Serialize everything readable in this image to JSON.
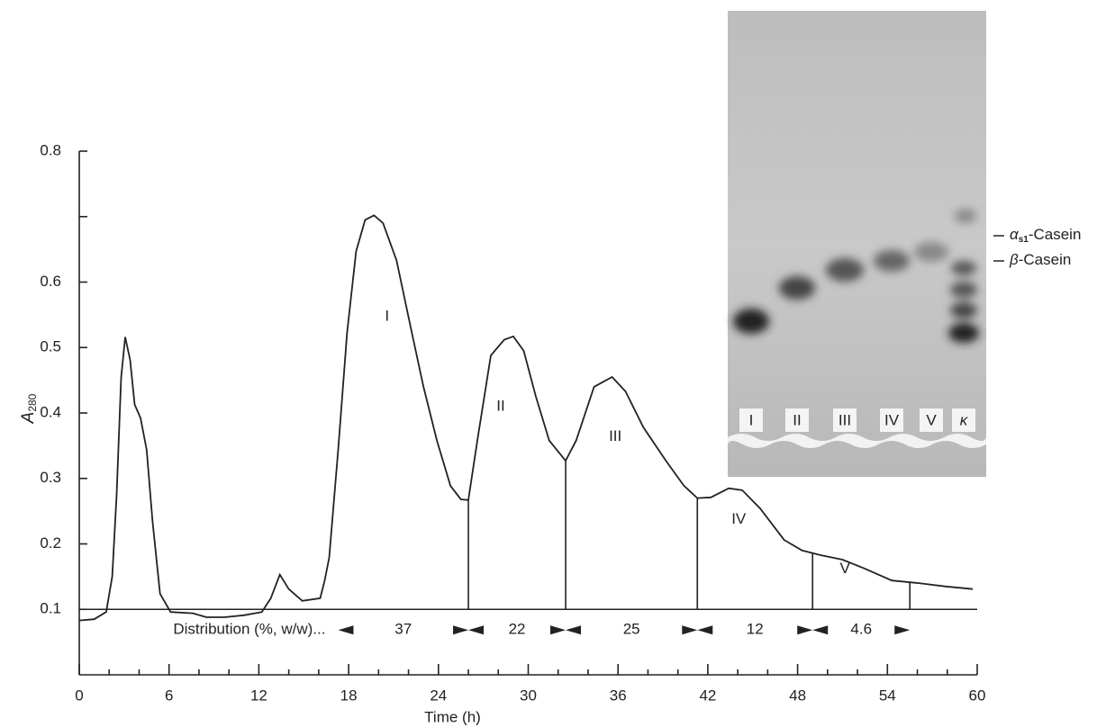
{
  "chart_data": {
    "type": "line",
    "x": [
      0,
      1.0,
      1.8,
      2.2,
      2.5,
      2.8,
      3.07,
      3.4,
      3.7,
      4.1,
      4.5,
      4.9,
      5.4,
      6.1,
      7.6,
      8.5,
      9.7,
      11.0,
      12.2,
      12.8,
      13.4,
      14.0,
      14.9,
      16.1,
      16.4,
      16.7,
      17.3,
      17.9,
      18.5,
      19.1,
      19.7,
      20.3,
      21.2,
      22.1,
      23.0,
      23.9,
      24.8,
      25.5,
      26.0,
      26.6,
      27.5,
      28.4,
      29.0,
      29.7,
      30.5,
      31.4,
      32.5,
      33.2,
      34.4,
      35.6,
      36.5,
      37.7,
      39.2,
      40.4,
      41.3,
      42.2,
      43.4,
      44.3,
      45.5,
      47.1,
      48.3,
      49.5,
      51.0,
      52.5,
      54.3,
      56.1,
      57.9,
      59.7
    ],
    "values": [
      0.083,
      0.085,
      0.096,
      0.15,
      0.275,
      0.454,
      0.516,
      0.481,
      0.413,
      0.392,
      0.344,
      0.234,
      0.124,
      0.096,
      0.094,
      0.088,
      0.088,
      0.091,
      0.096,
      0.117,
      0.153,
      0.131,
      0.113,
      0.117,
      0.144,
      0.179,
      0.344,
      0.523,
      0.647,
      0.695,
      0.702,
      0.69,
      0.633,
      0.536,
      0.44,
      0.358,
      0.289,
      0.268,
      0.267,
      0.358,
      0.488,
      0.512,
      0.517,
      0.495,
      0.426,
      0.358,
      0.327,
      0.358,
      0.44,
      0.455,
      0.433,
      0.378,
      0.327,
      0.289,
      0.27,
      0.271,
      0.285,
      0.282,
      0.254,
      0.206,
      0.19,
      0.183,
      0.176,
      0.162,
      0.144,
      0.14,
      0.135,
      0.131
    ],
    "color": "#222222",
    "xlim": [
      0,
      60
    ],
    "ylim": [
      0,
      0.8
    ],
    "xticks": [
      0,
      6,
      12,
      18,
      24,
      30,
      36,
      42,
      48,
      54,
      60
    ],
    "xminorticks": [
      2,
      4,
      8,
      10,
      14,
      16,
      20,
      22,
      26,
      28,
      32,
      34,
      38,
      40,
      44,
      46,
      50,
      52,
      56,
      58
    ],
    "yticks": [
      0.1,
      0.2,
      0.3,
      0.4,
      0.5,
      0.6,
      {
        "value": 0.7,
        "label": null
      },
      0.8
    ],
    "x_label": "Time (h)",
    "y_label": {
      "symbol": "A",
      "subscript": "280"
    },
    "baseline": 0.1,
    "fraction_bounds": [
      17.3,
      26.0,
      32.5,
      41.3,
      49.0,
      55.5
    ],
    "peak_labels": [
      "I",
      "II",
      "III",
      "IV",
      "V"
    ],
    "distribution_label": "Distribution (%, w/w)...",
    "distribution": [
      37,
      22,
      25,
      12,
      4.6
    ]
  },
  "gel": {
    "lanes": [
      "I",
      "II",
      "III",
      "IV",
      "V",
      "κ"
    ],
    "band_labels": [
      {
        "symbol": "α",
        "subscript": "s1",
        "text": "-Casein"
      },
      {
        "symbol": "β",
        "text": "-Casein"
      }
    ]
  }
}
